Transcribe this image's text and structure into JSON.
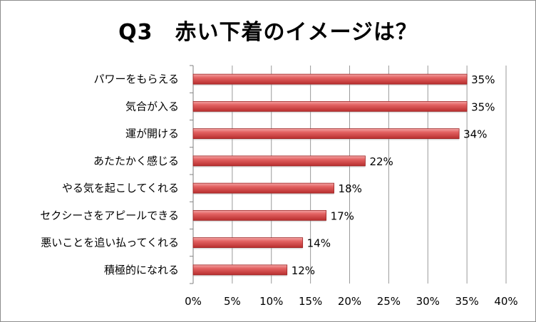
{
  "chart_data": {
    "type": "bar",
    "orientation": "horizontal",
    "title": "Q3　赤い下着のイメージは？",
    "categories": [
      "パワーをもらえる",
      "気合が入る",
      "運が開ける",
      "あたたかく感じる",
      "やる気を起こしてくれる",
      "セクシーさをアピールできる",
      "悪いことを追い払ってくれる",
      "積極的になれる"
    ],
    "values": [
      35,
      35,
      34,
      22,
      18,
      17,
      14,
      12
    ],
    "value_labels": [
      "35%",
      "35%",
      "34%",
      "22%",
      "18%",
      "17%",
      "14%",
      "12%"
    ],
    "xticks": [
      "0%",
      "5%",
      "10%",
      "15%",
      "20%",
      "25%",
      "30%",
      "35%",
      "40%"
    ],
    "xlim": [
      0,
      40
    ],
    "grid": true,
    "legend": "none",
    "bar_color": "#d84a4a"
  }
}
